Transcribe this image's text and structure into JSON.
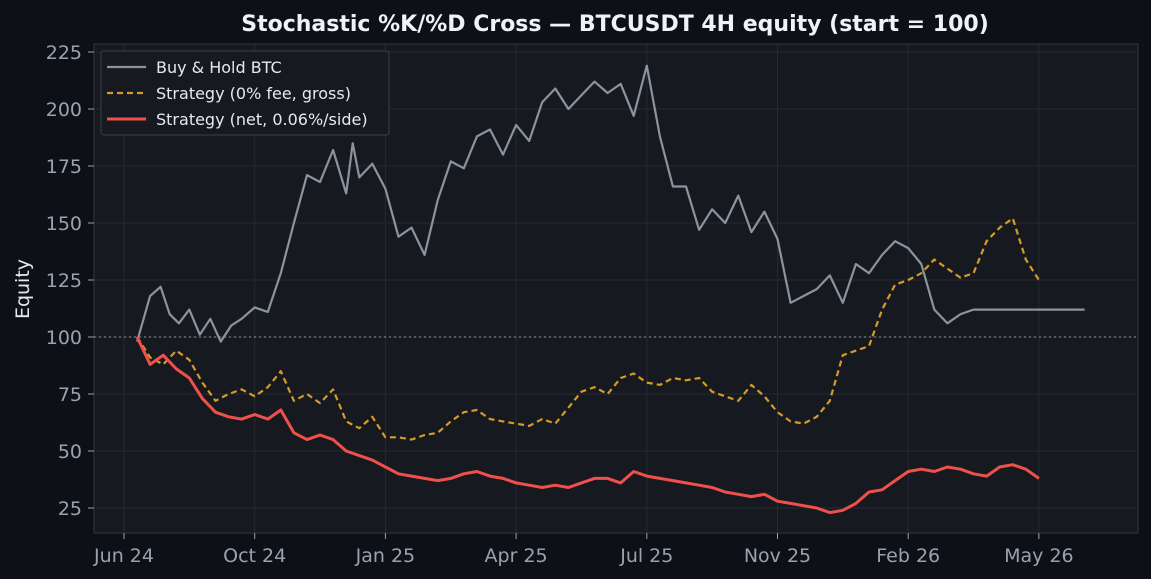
{
  "chart_data": {
    "type": "line",
    "title": "Stochastic %K/%D Cross — BTCUSDT 4H equity (start = 100)",
    "xlabel": "",
    "ylabel": "Equity",
    "x_ticks": [
      "Jun 24",
      "Oct 24",
      "Jan 25",
      "Apr 25",
      "Jul 25",
      "Nov 25",
      "Feb 26",
      "May 26"
    ],
    "y_ticks": [
      25,
      50,
      75,
      100,
      125,
      150,
      175,
      200,
      225
    ],
    "ylim": [
      13,
      232
    ],
    "xlim": [
      -0.25,
      7.7
    ],
    "reference_line": 100,
    "legend_position": "top-left",
    "grid": true,
    "colors": {
      "background": "#0d1117",
      "plot_background": "#161a20",
      "buy_hold": "#8b939c",
      "gross": "#d69a28",
      "net": "#f0504a",
      "grid": "#252a31",
      "reference": "#8b939c"
    },
    "series": [
      {
        "name": "Buy & Hold BTC",
        "style": "solid",
        "x": [
          0.1,
          0.2,
          0.28,
          0.35,
          0.42,
          0.5,
          0.58,
          0.66,
          0.74,
          0.82,
          0.9,
          1.0,
          1.1,
          1.2,
          1.3,
          1.4,
          1.5,
          1.6,
          1.7,
          1.75,
          1.8,
          1.9,
          2.0,
          2.1,
          2.2,
          2.3,
          2.4,
          2.5,
          2.6,
          2.7,
          2.8,
          2.9,
          3.0,
          3.1,
          3.2,
          3.3,
          3.4,
          3.5,
          3.6,
          3.7,
          3.8,
          3.9,
          4.0,
          4.1,
          4.2,
          4.3,
          4.4,
          4.5,
          4.6,
          4.7,
          4.8,
          4.9,
          5.0,
          5.1,
          5.2,
          5.3,
          5.4,
          5.5,
          5.6,
          5.7,
          5.8,
          5.9,
          6.0,
          6.1,
          6.2,
          6.3,
          6.4,
          6.5,
          6.6,
          6.7,
          6.8,
          6.9,
          7.0,
          7.1,
          7.2,
          7.3,
          7.35
        ],
        "values": [
          98,
          118,
          122,
          110,
          106,
          112,
          101,
          108,
          98,
          105,
          108,
          113,
          111,
          128,
          150,
          171,
          168,
          182,
          163,
          185,
          170,
          176,
          165,
          144,
          148,
          136,
          160,
          177,
          174,
          188,
          191,
          180,
          193,
          186,
          203,
          209,
          200,
          206,
          212,
          207,
          211,
          197,
          219,
          188,
          166,
          166,
          147,
          156,
          150,
          162,
          146,
          155,
          143,
          115,
          118,
          121,
          127,
          115,
          132,
          128,
          136,
          142,
          139,
          132,
          112,
          106,
          110,
          112,
          112,
          112,
          112,
          112,
          112,
          112,
          112,
          112,
          112
        ]
      },
      {
        "name": "Strategy (0% fee, gross)",
        "style": "dashed",
        "x": [
          0.1,
          0.2,
          0.3,
          0.4,
          0.5,
          0.6,
          0.7,
          0.8,
          0.9,
          1.0,
          1.1,
          1.2,
          1.3,
          1.4,
          1.5,
          1.6,
          1.7,
          1.8,
          1.9,
          2.0,
          2.1,
          2.2,
          2.3,
          2.4,
          2.5,
          2.6,
          2.7,
          2.8,
          2.9,
          3.0,
          3.1,
          3.2,
          3.3,
          3.4,
          3.5,
          3.6,
          3.7,
          3.8,
          3.9,
          4.0,
          4.1,
          4.2,
          4.3,
          4.4,
          4.5,
          4.6,
          4.7,
          4.8,
          4.9,
          5.0,
          5.1,
          5.2,
          5.3,
          5.4,
          5.5,
          5.6,
          5.7,
          5.8,
          5.9,
          6.0,
          6.1,
          6.2,
          6.3,
          6.4,
          6.5,
          6.6,
          6.7,
          6.8,
          6.9,
          7.0
        ],
        "values": [
          100,
          91,
          88,
          94,
          90,
          80,
          72,
          75,
          77,
          74,
          78,
          85,
          72,
          75,
          71,
          77,
          63,
          60,
          65,
          56,
          56,
          55,
          57,
          58,
          63,
          67,
          68,
          64,
          63,
          62,
          61,
          64,
          62,
          69,
          76,
          78,
          75,
          82,
          84,
          80,
          79,
          82,
          81,
          82,
          76,
          74,
          72,
          79,
          74,
          67,
          63,
          62,
          65,
          72,
          92,
          94,
          96,
          112,
          123,
          125,
          128,
          134,
          130,
          126,
          128,
          142,
          148,
          152,
          134,
          125
        ]
      },
      {
        "name": "Strategy (net, 0.06%/side)",
        "style": "solid",
        "x": [
          0.1,
          0.2,
          0.3,
          0.4,
          0.5,
          0.6,
          0.7,
          0.8,
          0.9,
          1.0,
          1.1,
          1.2,
          1.3,
          1.4,
          1.5,
          1.6,
          1.7,
          1.8,
          1.9,
          2.0,
          2.1,
          2.2,
          2.3,
          2.4,
          2.5,
          2.6,
          2.7,
          2.8,
          2.9,
          3.0,
          3.1,
          3.2,
          3.3,
          3.4,
          3.5,
          3.6,
          3.7,
          3.8,
          3.9,
          4.0,
          4.1,
          4.2,
          4.3,
          4.4,
          4.5,
          4.6,
          4.7,
          4.8,
          4.9,
          5.0,
          5.1,
          5.2,
          5.3,
          5.4,
          5.5,
          5.6,
          5.7,
          5.8,
          5.9,
          6.0,
          6.1,
          6.2,
          6.3,
          6.4,
          6.5,
          6.6,
          6.7,
          6.8,
          6.9,
          7.0
        ],
        "values": [
          100,
          88,
          92,
          86,
          82,
          73,
          67,
          65,
          64,
          66,
          64,
          68,
          58,
          55,
          57,
          55,
          50,
          48,
          46,
          43,
          40,
          39,
          38,
          37,
          38,
          40,
          41,
          39,
          38,
          36,
          35,
          34,
          35,
          34,
          36,
          38,
          38,
          36,
          41,
          39,
          38,
          37,
          36,
          35,
          34,
          32,
          31,
          30,
          31,
          28,
          27,
          26,
          25,
          23,
          24,
          27,
          32,
          33,
          37,
          41,
          42,
          41,
          43,
          42,
          40,
          39,
          43,
          44,
          42,
          38
        ]
      }
    ]
  }
}
